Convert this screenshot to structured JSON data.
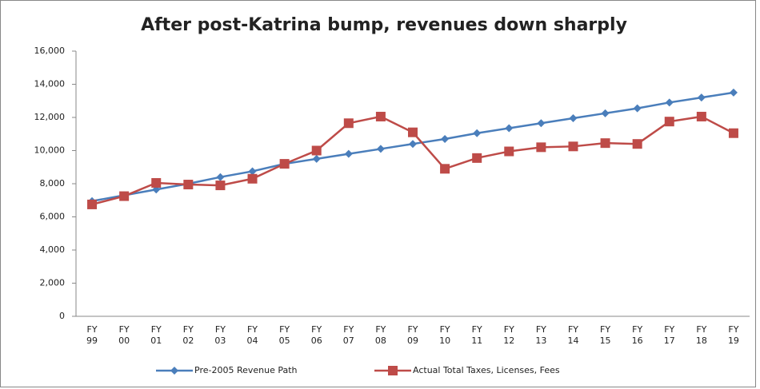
{
  "chart_data": {
    "type": "line",
    "title": "After post-Katrina bump, revenues down sharply",
    "categories": [
      "FY 99",
      "FY 00",
      "FY 01",
      "FY 02",
      "FY 03",
      "FY 04",
      "FY 05",
      "FY 06",
      "FY 07",
      "FY 08",
      "FY 09",
      "FY 10",
      "FY 11",
      "FY 12",
      "FY 13",
      "FY 14",
      "FY 15",
      "FY 16",
      "FY 17",
      "FY 18",
      "FY 19"
    ],
    "series": [
      {
        "name": "Pre-2005 Revenue Path",
        "color": "#4a7ebb",
        "marker": "diamond",
        "values": [
          6950,
          7300,
          7650,
          8000,
          8400,
          8750,
          9200,
          9500,
          9800,
          10100,
          10400,
          10700,
          11050,
          11350,
          11650,
          11950,
          12250,
          12550,
          12900,
          13200,
          13500
        ]
      },
      {
        "name": "Actual Total Taxes, Licenses, Fees",
        "color": "#be4b48",
        "marker": "square",
        "values": [
          6750,
          7250,
          8050,
          7950,
          7900,
          8300,
          9200,
          10000,
          11650,
          12050,
          11100,
          8900,
          9550,
          9950,
          10200,
          10250,
          10450,
          10400,
          11750,
          12050,
          11050
        ]
      }
    ],
    "ylim": [
      0,
      16000
    ],
    "yticks": [
      0,
      {
        "value": 2000,
        "label": "2,000"
      },
      {
        "value": 4000,
        "label": "4,000"
      },
      {
        "value": 6000,
        "label": "6,000"
      },
      {
        "value": 8000,
        "label": "8,000"
      },
      {
        "value": 10000,
        "label": "10,000"
      },
      {
        "value": 12000,
        "label": "12,000"
      },
      {
        "value": 14000,
        "label": "14,000"
      },
      {
        "value": 16000,
        "label": "16,000"
      }
    ],
    "grid": false,
    "legend": "bottom"
  }
}
